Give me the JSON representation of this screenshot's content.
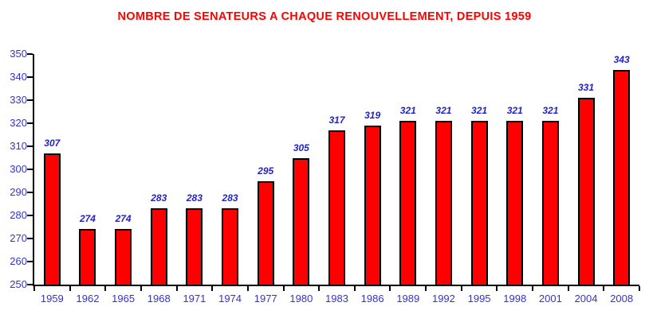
{
  "chart_data": {
    "type": "bar",
    "title": "NOMBRE DE SENATEURS A CHAQUE RENOUVELLEMENT, DEPUIS 1959",
    "categories": [
      "1959",
      "1962",
      "1965",
      "1968",
      "1971",
      "1974",
      "1977",
      "1980",
      "1983",
      "1986",
      "1989",
      "1992",
      "1995",
      "1998",
      "2001",
      "2004",
      "2008"
    ],
    "values": [
      307,
      274,
      274,
      283,
      283,
      283,
      295,
      305,
      317,
      319,
      321,
      321,
      321,
      321,
      321,
      331,
      343
    ],
    "xlabel": "",
    "ylabel": "",
    "ylim": [
      250,
      350
    ],
    "ytick_step": 10,
    "grid": false,
    "legend": false,
    "value_labels_shown": true,
    "colors": {
      "title": "#FF0000",
      "bar_fill": "#FF0000",
      "bar_border": "#000000",
      "value_label": "#2222CC",
      "axis_text": "#3333CC",
      "axis_line": "#000000"
    }
  }
}
